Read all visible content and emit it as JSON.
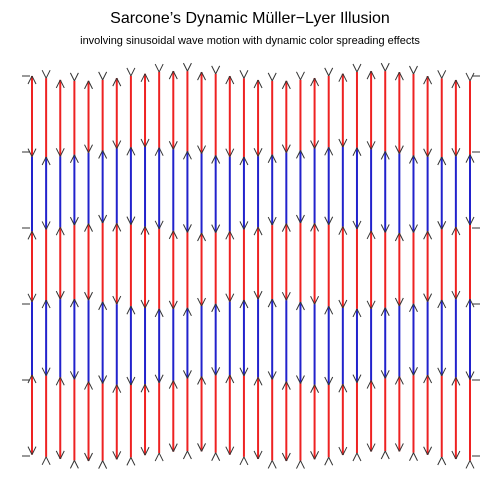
{
  "title": "Sarcone’s Dynamic Müller−Lyer Illusion",
  "subtitle": "involving sinusoidal wave motion with dynamic color spreading effects",
  "colors": {
    "segment_a": "#ee2222",
    "segment_b": "#2222cc",
    "fins": "#333333",
    "background": "#ffffff"
  },
  "illusion": {
    "column_count": 32,
    "band_count": 5,
    "band_colors": [
      "segment_a",
      "segment_b",
      "segment_a",
      "segment_b",
      "segment_a"
    ]
  }
}
